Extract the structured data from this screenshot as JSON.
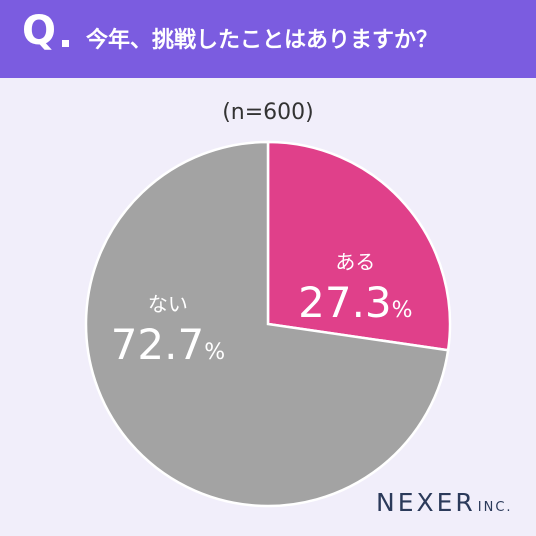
{
  "header": {
    "q_label": "Q",
    "question": "今年、挑戦したことはありますか？"
  },
  "sample_label": "(n=600)",
  "chart_data": {
    "type": "pie",
    "slices": [
      {
        "label": "ある",
        "value": 27.3,
        "display": "27.3",
        "unit": "%",
        "color": "#e0408a"
      },
      {
        "label": "ない",
        "value": 72.7,
        "display": "72.7",
        "unit": "%",
        "color": "#a3a3a3"
      }
    ],
    "start": "12 o'clock, clockwise"
  },
  "logo": {
    "main": "NEXER",
    "suffix": "INC."
  }
}
